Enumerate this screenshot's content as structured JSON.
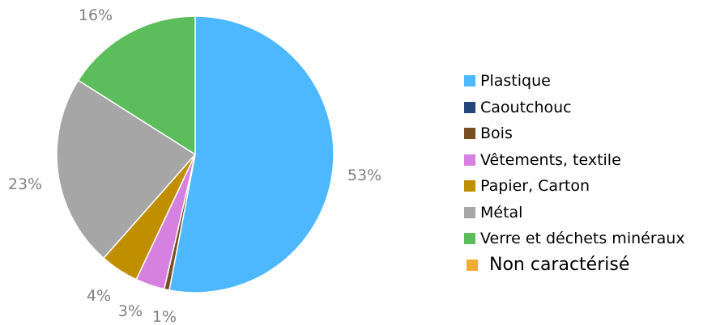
{
  "chart_data": {
    "type": "pie",
    "title": "",
    "slices": [
      {
        "label": "Plastique",
        "value": 53,
        "display": "53%",
        "color": "#4db8ff"
      },
      {
        "label": "Caoutchouc",
        "value": 0,
        "display": "",
        "color": "#254678"
      },
      {
        "label": "Bois",
        "value": 0.6,
        "display": "1%",
        "color": "#7a4e24"
      },
      {
        "label": "Vêtements, textile",
        "value": 3.4,
        "display": "3%",
        "color": "#d681e0"
      },
      {
        "label": "Papier, Carton",
        "value": 4.5,
        "display": "4%",
        "color": "#bf8f00"
      },
      {
        "label": "Métal",
        "value": 22.5,
        "display": "23%",
        "color": "#a6a6a6"
      },
      {
        "label": "Verre et déchets minéraux",
        "value": 16,
        "display": "16%",
        "color": "#5cbd5c"
      },
      {
        "label": "Non caractérisé",
        "value": 0,
        "display": "",
        "color": "#f0ad36"
      }
    ],
    "legend_position": "right"
  }
}
